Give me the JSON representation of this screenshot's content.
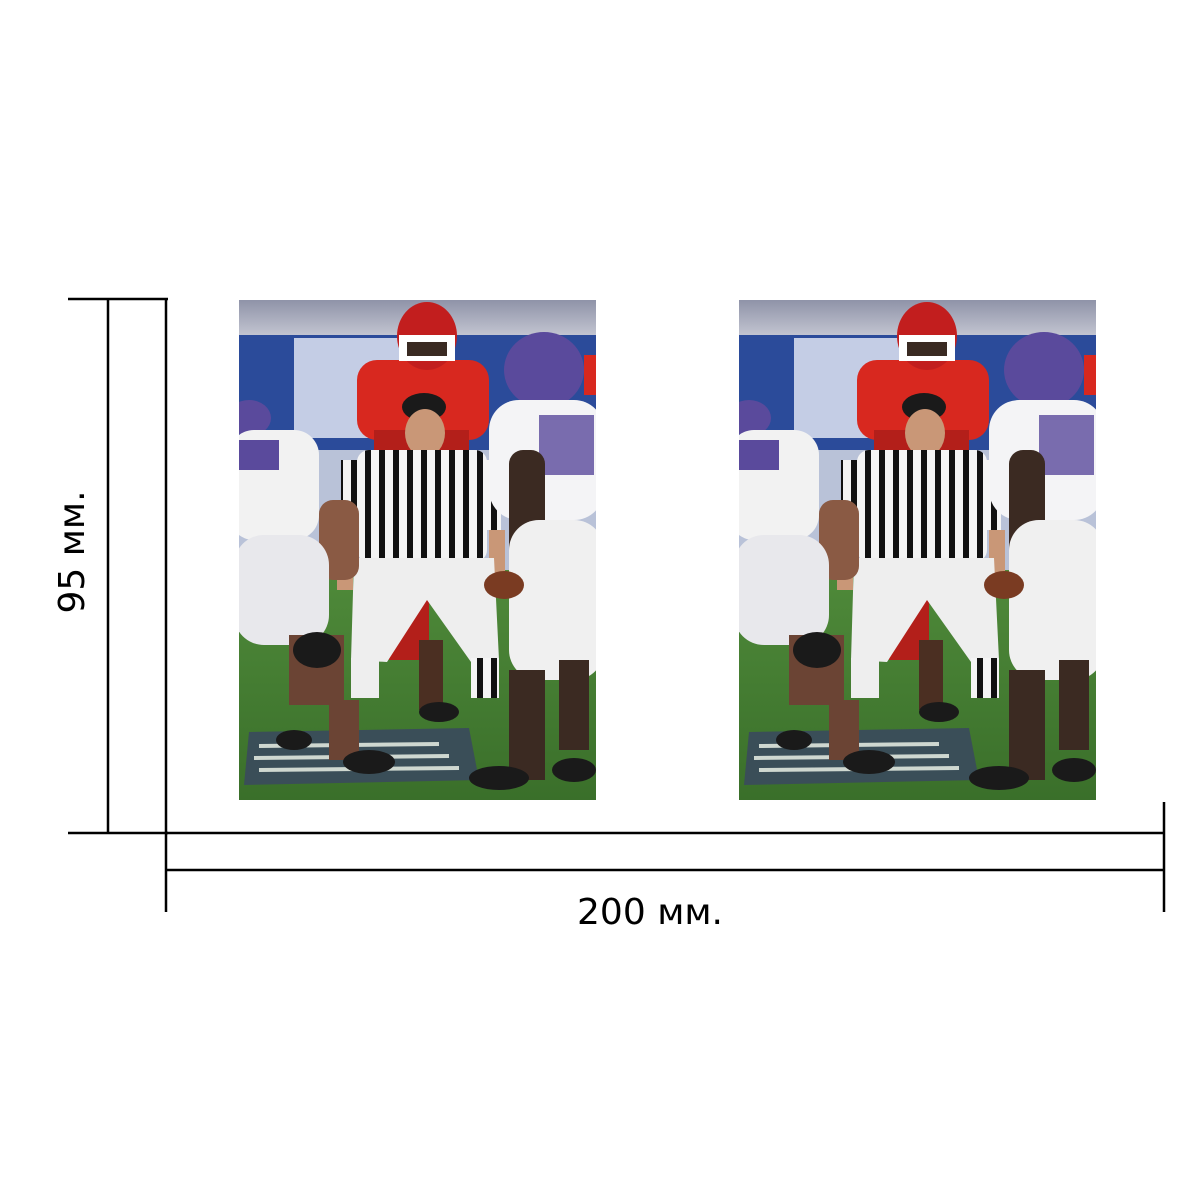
{
  "dimensions": {
    "height_label": "95 мм.",
    "width_label": "200 мм."
  },
  "photos": [
    {
      "subject": "american-football-referee-photo"
    },
    {
      "subject": "american-football-referee-photo"
    }
  ],
  "colors": {
    "line": "#000000",
    "background": "#ffffff",
    "field_green": "#3f7a2e",
    "banner_blue": "#2b4b9a",
    "jersey_red": "#d8281f",
    "jersey_white": "#f2f2f2",
    "jersey_purple": "#5a4a9c"
  }
}
